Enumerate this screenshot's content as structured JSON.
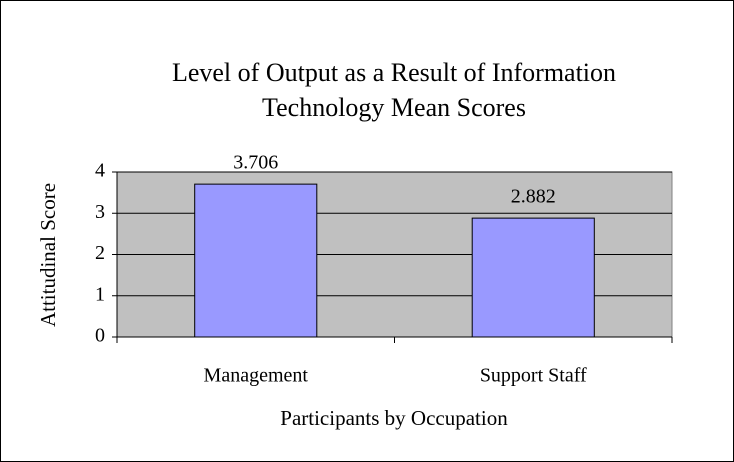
{
  "chart_data": {
    "type": "bar",
    "title": [
      "Level of Output as a Result of Information",
      "Technology Mean Scores"
    ],
    "x_label": "Participants by Occupation",
    "y_label": "Attitudinal Score",
    "categories": [
      "Management",
      "Support Staff"
    ],
    "values": [
      3.706,
      2.882
    ],
    "color": "#9999ff",
    "ylim": [
      0,
      4
    ],
    "yticks": [
      0,
      1,
      2,
      3,
      4
    ],
    "grid": true
  }
}
